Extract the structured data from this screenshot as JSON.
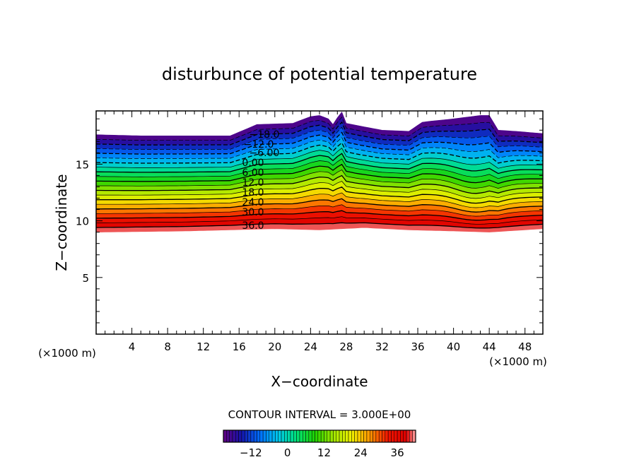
{
  "chart_data": {
    "type": "heatmap",
    "title": "disturbunce of potential temperature",
    "xlabel": "X−coordinate",
    "ylabel": "Z−coordinate",
    "x_unit": "(×1000 m)",
    "y_unit": "(×1000 m)",
    "xlim": [
      0,
      50
    ],
    "ylim": [
      0,
      19.7
    ],
    "x_ticks": [
      "4",
      "8",
      "12",
      "16",
      "20",
      "24",
      "28",
      "32",
      "36",
      "40",
      "44",
      "48"
    ],
    "y_ticks": [
      "5",
      "10",
      "15"
    ],
    "contour_interval_label": "CONTOUR INTERVAL = 3.000E+00",
    "contour_labels": [
      "−18.0",
      "−12.0",
      "−6.00",
      "0.00",
      "6.00",
      "12.0",
      "18.0",
      "24.0",
      "30.0",
      "36.0"
    ],
    "colorbar": {
      "range": [
        -21,
        42
      ],
      "ticks": [
        "−12",
        "0",
        "12",
        "24",
        "36"
      ]
    },
    "layer_boundaries_km": {
      "top_x": [
        0,
        5,
        10,
        15,
        18,
        22,
        24,
        25,
        26,
        26.6,
        27,
        27.5,
        28,
        30,
        32,
        35,
        36.5,
        37.5,
        40,
        43,
        44,
        45,
        47,
        50
      ],
      "top_z": [
        17.6,
        17.5,
        17.5,
        17.5,
        18.5,
        18.6,
        19.2,
        19.3,
        19.0,
        18.4,
        19.1,
        19.6,
        18.6,
        18.3,
        18.0,
        17.9,
        18.7,
        18.8,
        19.0,
        19.3,
        19.3,
        18.0,
        17.9,
        17.7
      ],
      "bottom_x": [
        0,
        10,
        20,
        25,
        30,
        35,
        40,
        44,
        48,
        50
      ],
      "bottom_z": [
        9.0,
        9.1,
        9.3,
        9.2,
        9.4,
        9.2,
        9.1,
        9.0,
        9.2,
        9.3
      ]
    }
  }
}
